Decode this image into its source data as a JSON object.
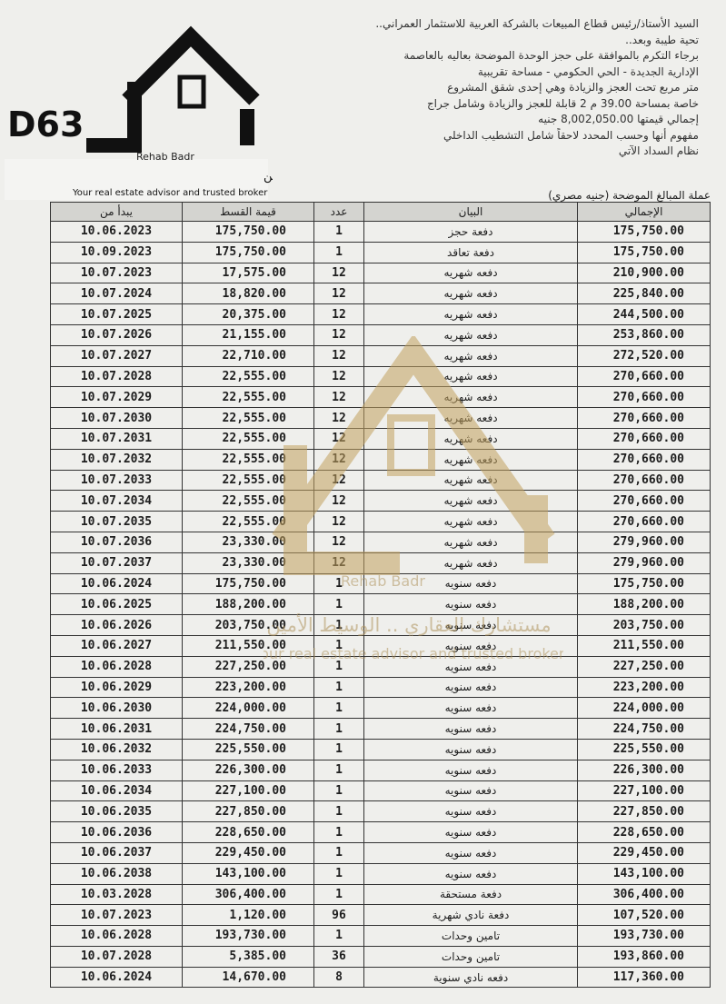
{
  "header": {
    "lines": [
      "السيد الأستاذ/رئيس قطاع المبيعات بالشركة العربية للاستثمار العمراني..",
      "تحية طيبة وبعد..",
      "برجاء التكرم بالموافقة على حجز الوحدة الموضحة بعاليه بالعاصمة",
      "الإدارية الجديدة - الحي الحكومي - مساحة تقريبية",
      "متر مربع تحت العجز والزيادة وهي إحدى شقق المشروع",
      "خاصة بمساحة 39.00 م 2 قابلة للعجز والزيادة وشامل جراج",
      "إجمالي قيمتها 8,002,050.00 جنيه",
      "مفهوم أنها وحسب المحدد لاحقاً شامل التشطيب الداخلي",
      "نظام السداد الآتي"
    ],
    "table_caption": "عملة المبالغ الموضحة (جنيه مصري)"
  },
  "logo": {
    "code": "D63",
    "brand": "Rehab Badr",
    "tagline_ar": "مستشارك العقاري .. الوسيط الأمين",
    "tagline_en": "Your real estate advisor and trusted broker"
  },
  "table": {
    "columns": [
      "يبدأ من",
      "قيمة القسط",
      "عدد",
      "البيان",
      "الإجمالي"
    ],
    "rows": [
      [
        "10.06.2023",
        "175,750.00",
        "1",
        "دفعة حجز",
        "175,750.00"
      ],
      [
        "10.09.2023",
        "175,750.00",
        "1",
        "دفعة تعاقد",
        "175,750.00"
      ],
      [
        "10.07.2023",
        "17,575.00",
        "12",
        "دفعه شهريه",
        "210,900.00"
      ],
      [
        "10.07.2024",
        "18,820.00",
        "12",
        "دفعه شهريه",
        "225,840.00"
      ],
      [
        "10.07.2025",
        "20,375.00",
        "12",
        "دفعه شهريه",
        "244,500.00"
      ],
      [
        "10.07.2026",
        "21,155.00",
        "12",
        "دفعه شهريه",
        "253,860.00"
      ],
      [
        "10.07.2027",
        "22,710.00",
        "12",
        "دفعه شهريه",
        "272,520.00"
      ],
      [
        "10.07.2028",
        "22,555.00",
        "12",
        "دفعه شهريه",
        "270,660.00"
      ],
      [
        "10.07.2029",
        "22,555.00",
        "12",
        "دفعه شهريه",
        "270,660.00"
      ],
      [
        "10.07.2030",
        "22,555.00",
        "12",
        "دفعه شهريه",
        "270,660.00"
      ],
      [
        "10.07.2031",
        "22,555.00",
        "12",
        "دفعه شهريه",
        "270,660.00"
      ],
      [
        "10.07.2032",
        "22,555.00",
        "12",
        "دفعه شهريه",
        "270,660.00"
      ],
      [
        "10.07.2033",
        "22,555.00",
        "12",
        "دفعه شهريه",
        "270,660.00"
      ],
      [
        "10.07.2034",
        "22,555.00",
        "12",
        "دفعه شهريه",
        "270,660.00"
      ],
      [
        "10.07.2035",
        "22,555.00",
        "12",
        "دفعه شهريه",
        "270,660.00"
      ],
      [
        "10.07.2036",
        "23,330.00",
        "12",
        "دفعه شهريه",
        "279,960.00"
      ],
      [
        "10.07.2037",
        "23,330.00",
        "12",
        "دفعه شهريه",
        "279,960.00"
      ],
      [
        "10.06.2024",
        "175,750.00",
        "1",
        "دفعه سنويه",
        "175,750.00"
      ],
      [
        "10.06.2025",
        "188,200.00",
        "1",
        "دفعه سنويه",
        "188,200.00"
      ],
      [
        "10.06.2026",
        "203,750.00",
        "1",
        "دفعه سنويه",
        "203,750.00"
      ],
      [
        "10.06.2027",
        "211,550.00",
        "1",
        "دفعه سنويه",
        "211,550.00"
      ],
      [
        "10.06.2028",
        "227,250.00",
        "1",
        "دفعه سنويه",
        "227,250.00"
      ],
      [
        "10.06.2029",
        "223,200.00",
        "1",
        "دفعه سنويه",
        "223,200.00"
      ],
      [
        "10.06.2030",
        "224,000.00",
        "1",
        "دفعه سنويه",
        "224,000.00"
      ],
      [
        "10.06.2031",
        "224,750.00",
        "1",
        "دفعه سنويه",
        "224,750.00"
      ],
      [
        "10.06.2032",
        "225,550.00",
        "1",
        "دفعه سنويه",
        "225,550.00"
      ],
      [
        "10.06.2033",
        "226,300.00",
        "1",
        "دفعه سنويه",
        "226,300.00"
      ],
      [
        "10.06.2034",
        "227,100.00",
        "1",
        "دفعه سنويه",
        "227,100.00"
      ],
      [
        "10.06.2035",
        "227,850.00",
        "1",
        "دفعه سنويه",
        "227,850.00"
      ],
      [
        "10.06.2036",
        "228,650.00",
        "1",
        "دفعه سنويه",
        "228,650.00"
      ],
      [
        "10.06.2037",
        "229,450.00",
        "1",
        "دفعه سنويه",
        "229,450.00"
      ],
      [
        "10.06.2038",
        "143,100.00",
        "1",
        "دفعه سنويه",
        "143,100.00"
      ],
      [
        "10.03.2028",
        "306,400.00",
        "1",
        "دفعة مستحقة",
        "306,400.00"
      ],
      [
        "10.07.2023",
        "1,120.00",
        "96",
        "دفعة نادي شهرية",
        "107,520.00"
      ],
      [
        "10.06.2028",
        "193,730.00",
        "1",
        "تامين وحدات",
        "193,730.00"
      ],
      [
        "10.07.2028",
        "5,385.00",
        "36",
        "تامين وحدات",
        "193,860.00"
      ],
      [
        "10.06.2024",
        "14,670.00",
        "8",
        "دفعه نادي سنوية",
        "117,360.00"
      ]
    ]
  }
}
